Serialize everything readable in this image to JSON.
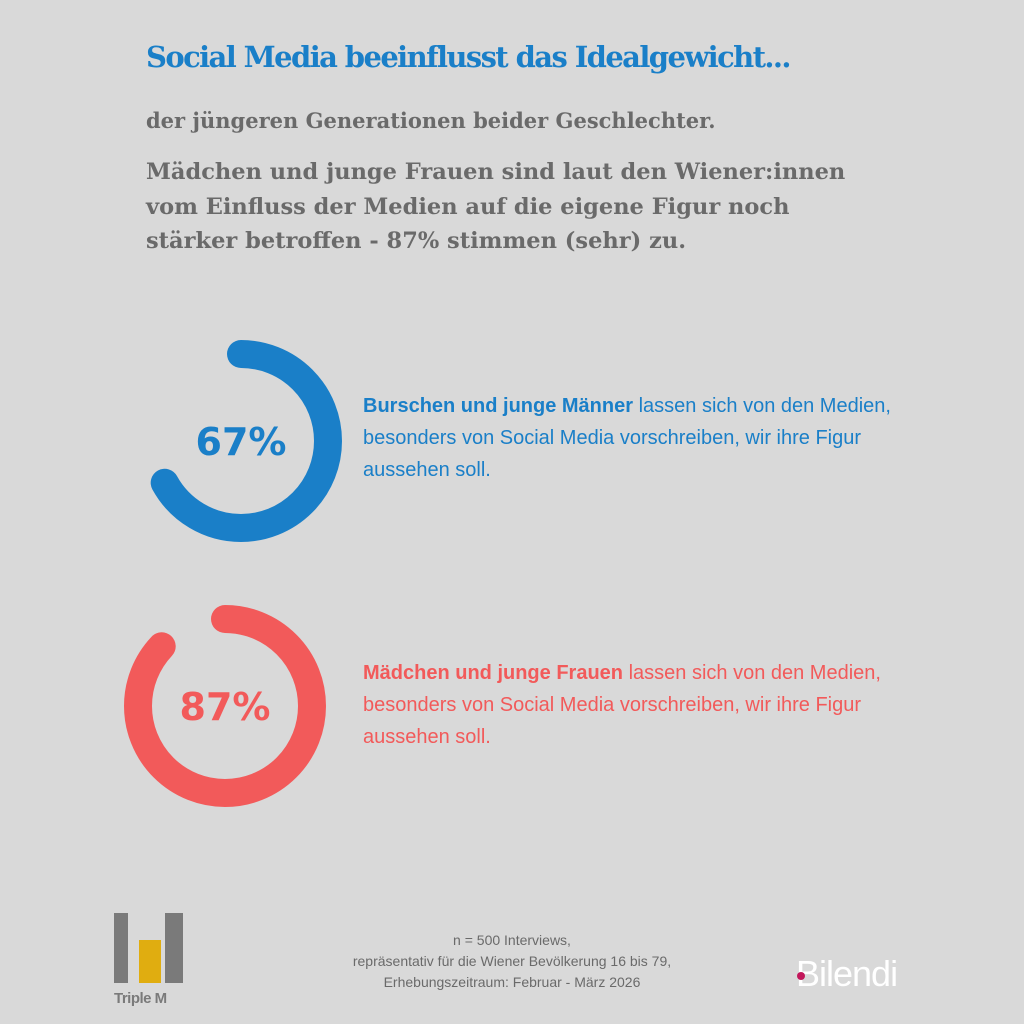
{
  "header": {
    "title": "Social Media beeinflusst das Idealgewicht...",
    "subtitle": "der jüngeren Generationen beider Geschlechter.",
    "lead": "Mädchen und junge Frauen sind laut den Wiener:innen vom Einfluss der Medien auf die eigene Figur noch stärker betroffen - 87% stimmen (sehr) zu."
  },
  "items": [
    {
      "value_label": "67%",
      "highlight": "Burschen und junge Männer",
      "text": " lassen sich von den Medien, besonders von Social Media vorschreiben, wir ihre Figur aussehen soll.",
      "color": "#1a7fc8"
    },
    {
      "value_label": "87%",
      "highlight": "Mädchen und junge Frauen",
      "text": " lassen sich von den Medien, besonders von Social Media vorschreiben, wir ihre Figur aussehen soll.",
      "color": "#f25a5a"
    }
  ],
  "chart_data": {
    "type": "pie",
    "title": "",
    "categories": [
      "Burschen und junge Männer",
      "Mädchen und junge Frauen"
    ],
    "values": [
      67,
      87
    ],
    "unit": "%",
    "ylim": [
      0,
      100
    ]
  },
  "footer": {
    "lines": [
      "n = 500 Interviews,",
      "repräsentativ für die Wiener Bevölkerung 16 bis 79,",
      "Erhebungszeitraum: Februar - März  2026"
    ]
  },
  "logos": {
    "triplem": "Triple M",
    "bilendi": "Bilendi"
  }
}
